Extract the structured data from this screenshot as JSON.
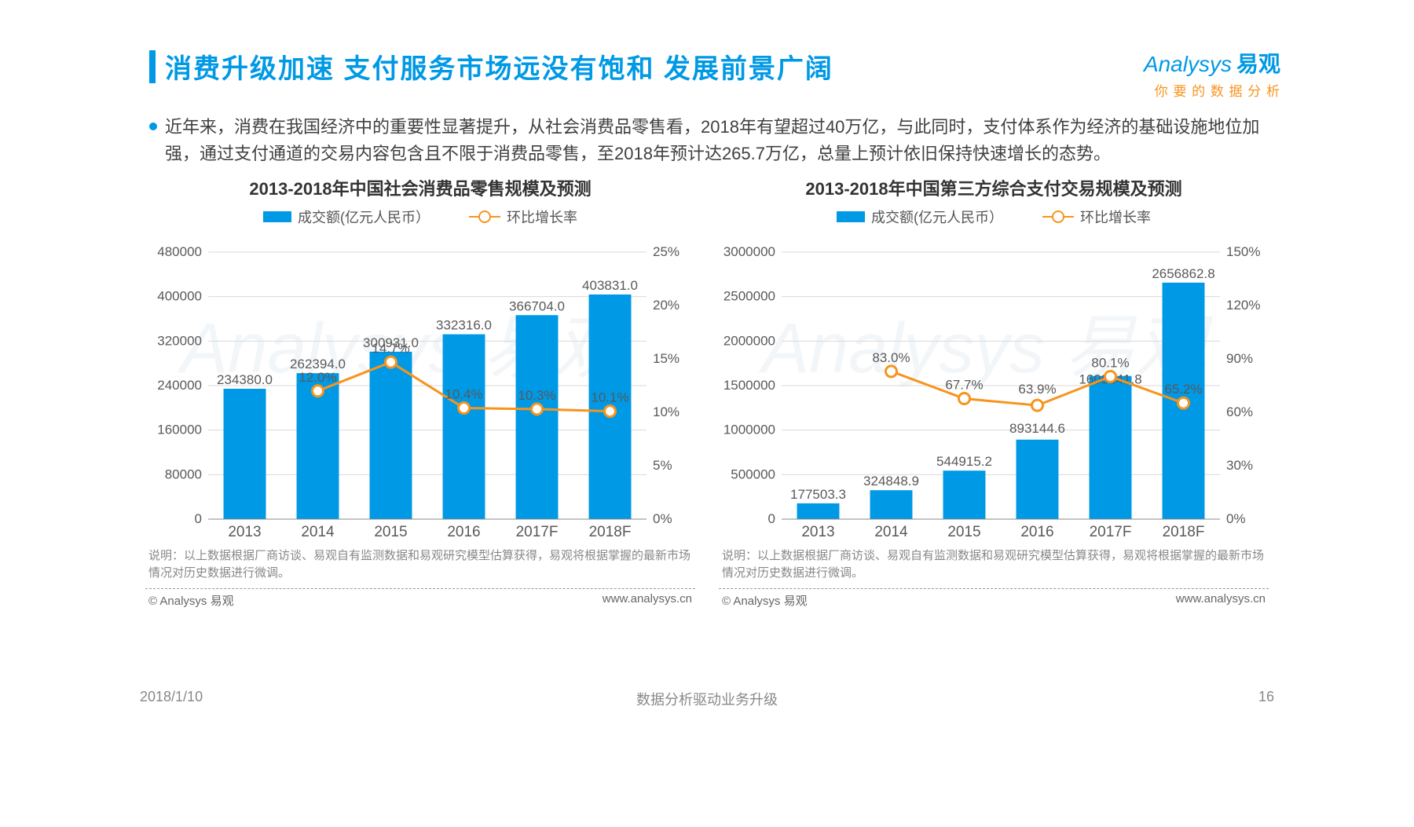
{
  "header": {
    "title": "消费升级加速  支付服务市场远没有饱和  发展前景广阔",
    "logo_main": "Analysys",
    "logo_cn": "易观",
    "logo_sub": "你 要 的 数 据 分 析"
  },
  "bullet": "近年来，消费在我国经济中的重要性显著提升，从社会消费品零售看，2018年有望超过40万亿，与此同时，支付体系作为经济的基础设施地位加强，通过支付通道的交易内容包含且不限于消费品零售，至2018年预计达265.7万亿，总量上预计依旧保持快速增长的态势。",
  "legend": {
    "bar": "成交额(亿元人民币）",
    "line": "环比增长率"
  },
  "chart_left": {
    "title": "2013-2018年中国社会消费品零售规模及预测",
    "categories": [
      "2013",
      "2014",
      "2015",
      "2016",
      "2017F",
      "2018F"
    ],
    "bar_values": [
      234380.0,
      262394.0,
      300931.0,
      332316.0,
      366704.0,
      403831.0
    ],
    "bar_labels": [
      "234380.0",
      "262394.0",
      "300931.0",
      "332316.0",
      "366704.0",
      "403831.0"
    ],
    "line_values": [
      null,
      12.0,
      14.7,
      10.4,
      10.3,
      10.1
    ],
    "line_labels": [
      null,
      "12.0%",
      "14.7%",
      "10.4%",
      "10.3%",
      "10.1%"
    ],
    "y1_ticks": [
      0,
      80000,
      160000,
      240000,
      320000,
      400000,
      480000
    ],
    "y1_max": 480000,
    "y2_ticks": [
      "0%",
      "5%",
      "10%",
      "15%",
      "20%",
      "25%"
    ],
    "y2_max": 25,
    "bar_color": "#0099e5",
    "line_color": "#f7941d",
    "grid_color": "#d9d9d9"
  },
  "chart_right": {
    "title": "2013-2018年中国第三方综合支付交易规模及预测",
    "categories": [
      "2013",
      "2014",
      "2015",
      "2016",
      "2017F",
      "2018F"
    ],
    "bar_values": [
      177503.3,
      324848.9,
      544915.2,
      893144.6,
      1608341.8,
      2656862.8
    ],
    "bar_labels": [
      "177503.3",
      "324848.9",
      "544915.2",
      "893144.6",
      "1608341.8",
      "2656862.8"
    ],
    "bar_label_dy": [
      0,
      0,
      0,
      -3,
      16,
      0
    ],
    "line_values": [
      null,
      83.0,
      67.7,
      63.9,
      80.1,
      65.2
    ],
    "line_labels": [
      null,
      "83.0%",
      "67.7%",
      "63.9%",
      "80.1%",
      "65.2%"
    ],
    "line_label_dy": [
      0,
      -12,
      -12,
      -15,
      -12,
      -12
    ],
    "y1_ticks": [
      0,
      500000,
      1000000,
      1500000,
      2000000,
      2500000,
      3000000
    ],
    "y1_max": 3000000,
    "y2_ticks": [
      "0%",
      "30%",
      "60%",
      "90%",
      "120%",
      "150%"
    ],
    "y2_max": 150,
    "bar_color": "#0099e5",
    "line_color": "#f7941d",
    "grid_color": "#d9d9d9"
  },
  "note": "说明：以上数据根据厂商访谈、易观自有监测数据和易观研究模型估算获得，易观将根据掌握的最新市场情况对历史数据进行微调。",
  "attrib_left": "© Analysys 易观",
  "attrib_right": "www.analysys.cn",
  "footer": {
    "date": "2018/1/10",
    "center": "数据分析驱动业务升级",
    "page": "16"
  },
  "watermark": "Analysys 易观"
}
